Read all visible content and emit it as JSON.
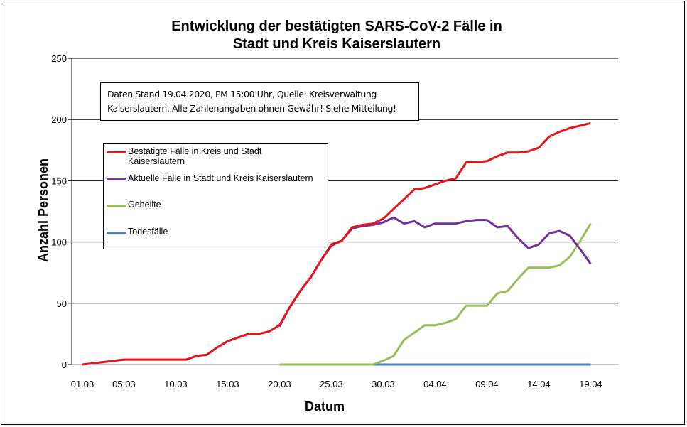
{
  "chart_data": {
    "type": "line",
    "title_line1": "Entwicklung der bestätigten SARS-CoV-2 Fälle in",
    "title_line2": "Stadt und Kreis Kaiserslautern",
    "xlabel": "Datum",
    "ylabel": "Anzahl Personen",
    "ylim": [
      0,
      250
    ],
    "yticks": [
      "0",
      "50",
      "100",
      "150",
      "200",
      "250"
    ],
    "xtick_labels": [
      "01.03",
      "05.03",
      "10.03",
      "15.03",
      "20.03",
      "25.03",
      "30.03",
      "04.04",
      "09.04",
      "14.04",
      "19.04"
    ],
    "xtick_day_index": [
      0,
      4,
      9,
      14,
      19,
      24,
      29,
      34,
      39,
      44,
      49
    ],
    "x_start": "01.03",
    "x_end": "19.04",
    "n_days": 50,
    "grid": "horizontal",
    "annotation_line1": "Daten Stand 19.04.2020, PM 15:00 Uhr, Quelle: Kreisverwaltung",
    "annotation_line2": "Kaiserslautern. Alle Zahlenangaben ohnen Gewähr! Siehe Mitteilung!",
    "legend_position": "upper-left",
    "series": [
      {
        "name_line1": "Bestätigte Fälle in Kreis und Stadt",
        "name_line2": "Kaiserslautern",
        "color": "#e8141b",
        "start_index": 0,
        "values": [
          0,
          1,
          2,
          3,
          4,
          4,
          4,
          4,
          4,
          4,
          4,
          7,
          8,
          14,
          19,
          22,
          25,
          25,
          27,
          32,
          47,
          60,
          71,
          85,
          98,
          101,
          112,
          114,
          115,
          119,
          127,
          135,
          143,
          144,
          147,
          150,
          152,
          165,
          165,
          166,
          170,
          173,
          173,
          174,
          177,
          186,
          190,
          193,
          195,
          197
        ]
      },
      {
        "name_line1": "Aktuelle Fälle in Stadt und Kreis Kaiserslautern",
        "name_line2": "",
        "color": "#7030a0",
        "start_index": 19,
        "values": [
          31,
          47,
          60,
          71,
          85,
          97,
          101,
          111,
          113,
          114,
          116,
          120,
          115,
          117,
          112,
          115,
          115,
          115,
          117,
          118,
          118,
          112,
          113,
          103,
          95,
          98,
          107,
          109,
          105,
          94,
          82
        ]
      },
      {
        "name_line1": "Geheilte",
        "name_line2": "",
        "color": "#9bbb59",
        "start_index": 19,
        "values": [
          0,
          0,
          0,
          0,
          0,
          0,
          0,
          0,
          0,
          0,
          3,
          7,
          20,
          26,
          32,
          32,
          34,
          37,
          48,
          48,
          48,
          58,
          60,
          70,
          79,
          79,
          79,
          81,
          88,
          101,
          115
        ]
      },
      {
        "name_line1": "Todesfälle",
        "name_line2": "",
        "color": "#4f81bd",
        "start_index": 28,
        "values": [
          0,
          0,
          0,
          0,
          0,
          0,
          0,
          0,
          0,
          0,
          0,
          0,
          0,
          0,
          0,
          0,
          0,
          0,
          0,
          0,
          0,
          0
        ]
      }
    ]
  }
}
